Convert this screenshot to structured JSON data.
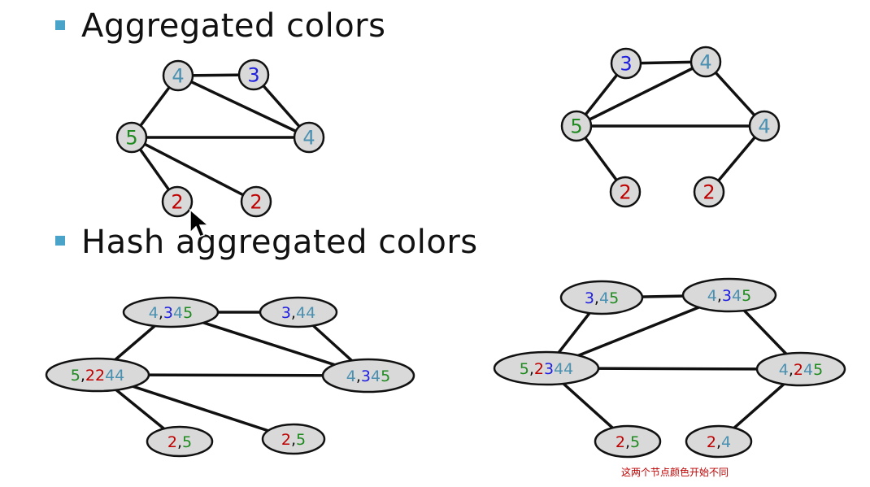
{
  "colors": {
    "green": "#1f8a1f",
    "blue": "#1f1fe0",
    "teal": "#4a90b0",
    "red": "#c00000",
    "black": "#111111",
    "bullet": "#4aa3c8"
  },
  "sections": [
    {
      "title": "Aggregated colors"
    },
    {
      "title": "Hash aggregated colors"
    }
  ],
  "note": "这两个节点颜色开始不同",
  "graphs": [
    {
      "id": "agg-left",
      "nodes": [
        {
          "id": "a",
          "label": [
            {
              "t": "4",
              "c": "teal"
            }
          ]
        },
        {
          "id": "b",
          "label": [
            {
              "t": "3",
              "c": "blue"
            }
          ]
        },
        {
          "id": "c",
          "label": [
            {
              "t": "5",
              "c": "green"
            }
          ]
        },
        {
          "id": "d",
          "label": [
            {
              "t": "4",
              "c": "teal"
            }
          ]
        },
        {
          "id": "e",
          "label": [
            {
              "t": "2",
              "c": "red"
            }
          ]
        },
        {
          "id": "f",
          "label": [
            {
              "t": "2",
              "c": "red"
            }
          ]
        }
      ],
      "edges": [
        [
          "a",
          "b"
        ],
        [
          "a",
          "c"
        ],
        [
          "a",
          "d"
        ],
        [
          "b",
          "d"
        ],
        [
          "c",
          "d"
        ],
        [
          "c",
          "e"
        ],
        [
          "c",
          "f"
        ]
      ]
    },
    {
      "id": "agg-right",
      "nodes": [
        {
          "id": "a",
          "label": [
            {
              "t": "3",
              "c": "blue"
            }
          ]
        },
        {
          "id": "b",
          "label": [
            {
              "t": "4",
              "c": "teal"
            }
          ]
        },
        {
          "id": "c",
          "label": [
            {
              "t": "5",
              "c": "green"
            }
          ]
        },
        {
          "id": "d",
          "label": [
            {
              "t": "4",
              "c": "teal"
            }
          ]
        },
        {
          "id": "e",
          "label": [
            {
              "t": "2",
              "c": "red"
            }
          ]
        },
        {
          "id": "f",
          "label": [
            {
              "t": "2",
              "c": "red"
            }
          ]
        }
      ],
      "edges": [
        [
          "a",
          "b"
        ],
        [
          "a",
          "c"
        ],
        [
          "b",
          "c"
        ],
        [
          "b",
          "d"
        ],
        [
          "c",
          "d"
        ],
        [
          "c",
          "e"
        ],
        [
          "d",
          "f"
        ]
      ]
    },
    {
      "id": "hash-left",
      "nodes": [
        {
          "id": "a",
          "label": [
            {
              "t": "4",
              "c": "teal"
            },
            {
              "t": ",",
              "c": "black"
            },
            {
              "t": "3",
              "c": "blue"
            },
            {
              "t": "4",
              "c": "teal"
            },
            {
              "t": "5",
              "c": "green"
            }
          ]
        },
        {
          "id": "b",
          "label": [
            {
              "t": "3",
              "c": "blue"
            },
            {
              "t": ",",
              "c": "black"
            },
            {
              "t": "4",
              "c": "teal"
            },
            {
              "t": "4",
              "c": "teal"
            }
          ]
        },
        {
          "id": "c",
          "label": [
            {
              "t": "5",
              "c": "green"
            },
            {
              "t": ",",
              "c": "black"
            },
            {
              "t": "2",
              "c": "red"
            },
            {
              "t": "2",
              "c": "red"
            },
            {
              "t": "4",
              "c": "teal"
            },
            {
              "t": "4",
              "c": "teal"
            }
          ]
        },
        {
          "id": "d",
          "label": [
            {
              "t": "4",
              "c": "teal"
            },
            {
              "t": ",",
              "c": "black"
            },
            {
              "t": "3",
              "c": "blue"
            },
            {
              "t": "4",
              "c": "teal"
            },
            {
              "t": "5",
              "c": "green"
            }
          ]
        },
        {
          "id": "e",
          "label": [
            {
              "t": "2",
              "c": "red"
            },
            {
              "t": ",",
              "c": "black"
            },
            {
              "t": "5",
              "c": "green"
            }
          ]
        },
        {
          "id": "f",
          "label": [
            {
              "t": "2",
              "c": "red"
            },
            {
              "t": ",",
              "c": "black"
            },
            {
              "t": "5",
              "c": "green"
            }
          ]
        }
      ],
      "edges": [
        [
          "a",
          "b"
        ],
        [
          "a",
          "c"
        ],
        [
          "a",
          "d"
        ],
        [
          "b",
          "d"
        ],
        [
          "c",
          "d"
        ],
        [
          "c",
          "e"
        ],
        [
          "c",
          "f"
        ]
      ]
    },
    {
      "id": "hash-right",
      "nodes": [
        {
          "id": "a",
          "label": [
            {
              "t": "3",
              "c": "blue"
            },
            {
              "t": ",",
              "c": "black"
            },
            {
              "t": "4",
              "c": "teal"
            },
            {
              "t": "5",
              "c": "green"
            }
          ]
        },
        {
          "id": "b",
          "label": [
            {
              "t": "4",
              "c": "teal"
            },
            {
              "t": ",",
              "c": "black"
            },
            {
              "t": "3",
              "c": "blue"
            },
            {
              "t": "4",
              "c": "teal"
            },
            {
              "t": "5",
              "c": "green"
            }
          ]
        },
        {
          "id": "c",
          "label": [
            {
              "t": "5",
              "c": "green"
            },
            {
              "t": ",",
              "c": "black"
            },
            {
              "t": "2",
              "c": "red"
            },
            {
              "t": "3",
              "c": "blue"
            },
            {
              "t": "4",
              "c": "teal"
            },
            {
              "t": "4",
              "c": "teal"
            }
          ]
        },
        {
          "id": "d",
          "label": [
            {
              "t": "4",
              "c": "teal"
            },
            {
              "t": ",",
              "c": "black"
            },
            {
              "t": "2",
              "c": "red"
            },
            {
              "t": "4",
              "c": "teal"
            },
            {
              "t": "5",
              "c": "green"
            }
          ]
        },
        {
          "id": "e",
          "label": [
            {
              "t": "2",
              "c": "red"
            },
            {
              "t": ",",
              "c": "black"
            },
            {
              "t": "5",
              "c": "green"
            }
          ]
        },
        {
          "id": "f",
          "label": [
            {
              "t": "2",
              "c": "red"
            },
            {
              "t": ",",
              "c": "black"
            },
            {
              "t": "4",
              "c": "teal"
            }
          ]
        }
      ],
      "edges": [
        [
          "a",
          "b"
        ],
        [
          "a",
          "c"
        ],
        [
          "b",
          "c"
        ],
        [
          "b",
          "d"
        ],
        [
          "c",
          "d"
        ],
        [
          "c",
          "e"
        ],
        [
          "d",
          "f"
        ]
      ]
    }
  ]
}
